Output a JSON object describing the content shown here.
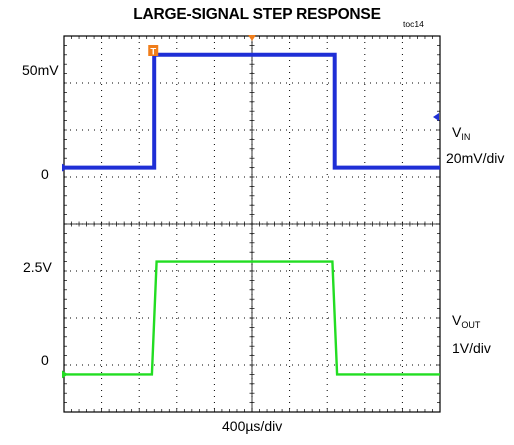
{
  "title": "LARGE-SIGNAL STEP RESPONSE",
  "figure_id": "toc14",
  "x_axis_label": "400µs/div",
  "colors": {
    "vin_trace": "#1f2fd6",
    "vout_trace": "#22dd22",
    "trigger_marker": "#f07d1a",
    "grid": "#000000"
  },
  "chart_data": [
    {
      "type": "line",
      "name": "top-channel",
      "channel_label_main": "V",
      "channel_label_sub": "IN",
      "scale_label": "20mV/div",
      "y_units": "mV",
      "ylim": [
        -30,
        70
      ],
      "ytick_labels": [
        {
          "label": "50mV",
          "value": 50
        },
        {
          "label": "0",
          "value": 0
        }
      ],
      "x_units": "µs",
      "xlim": [
        0,
        4000
      ],
      "trigger_label": "T",
      "series": [
        {
          "x": [
            0,
            960,
            960,
            2880,
            2880,
            4000
          ],
          "values": [
            0,
            0,
            60,
            60,
            0,
            0
          ]
        }
      ]
    },
    {
      "type": "line",
      "name": "bottom-channel",
      "channel_label_main": "V",
      "channel_label_sub": "OUT",
      "scale_label": "1V/div",
      "y_units": "V",
      "ylim": [
        -1.0,
        4.0
      ],
      "ytick_labels": [
        {
          "label": "2.5V",
          "value": 2.5
        },
        {
          "label": "0",
          "value": 0
        }
      ],
      "x_units": "µs",
      "xlim": [
        0,
        4000
      ],
      "series": [
        {
          "x": [
            0,
            935,
            985,
            2855,
            2905,
            4000
          ],
          "values": [
            0,
            0,
            3.0,
            3.0,
            0,
            0
          ]
        }
      ]
    }
  ]
}
